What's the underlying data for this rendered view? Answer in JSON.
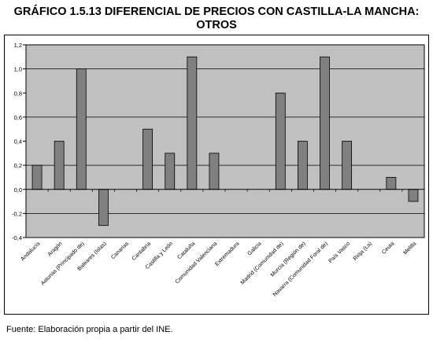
{
  "title_line1": "GRÁFICO 1.5.13 DIFERENCIAL DE PRECIOS CON CASTILLA-LA MANCHA:",
  "title_line2": "OTROS",
  "source": "Fuente: Elaboración propia a partir del INE.",
  "chart_data": {
    "type": "bar",
    "title": "GRÁFICO 1.5.13 DIFERENCIAL DE PRECIOS CON CASTILLA-LA MANCHA: OTROS",
    "xlabel": "",
    "ylabel": "",
    "ylim": [
      -0.4,
      1.2
    ],
    "ytick_labels": [
      "-0,4",
      "-0,2",
      "0,0",
      "0,2",
      "0,4",
      "0,6",
      "0,8",
      "1,0",
      "1,2"
    ],
    "ytick_values": [
      -0.4,
      -0.2,
      0.0,
      0.2,
      0.4,
      0.6,
      0.8,
      1.0,
      1.2
    ],
    "gridlines": [
      -0.2,
      0.2,
      0.6,
      1.0
    ],
    "plot_background": "#c0c0c0",
    "bar_color": "#808080",
    "bar_border_color": "#000000",
    "categories": [
      "Andalucía",
      "Aragón",
      "Asturias (Principado de)",
      "Baleares (Islas)",
      "Canarias",
      "Cantabria",
      "Castilla y León",
      "Cataluña",
      "Comunidad Valenciana",
      "Extremadura",
      "Galicia",
      "Madrid (Comunidad de)",
      "Murcia (Región de)",
      "Navarra (Comunidad Foral de)",
      "País Vasco",
      "Rioja (La)",
      "Ceuta",
      "Melilla"
    ],
    "values": [
      0.2,
      0.4,
      1.0,
      -0.3,
      0.0,
      0.5,
      0.3,
      1.1,
      0.3,
      0.0,
      0.0,
      0.8,
      0.4,
      1.1,
      0.4,
      0.0,
      0.1,
      -0.1
    ]
  }
}
